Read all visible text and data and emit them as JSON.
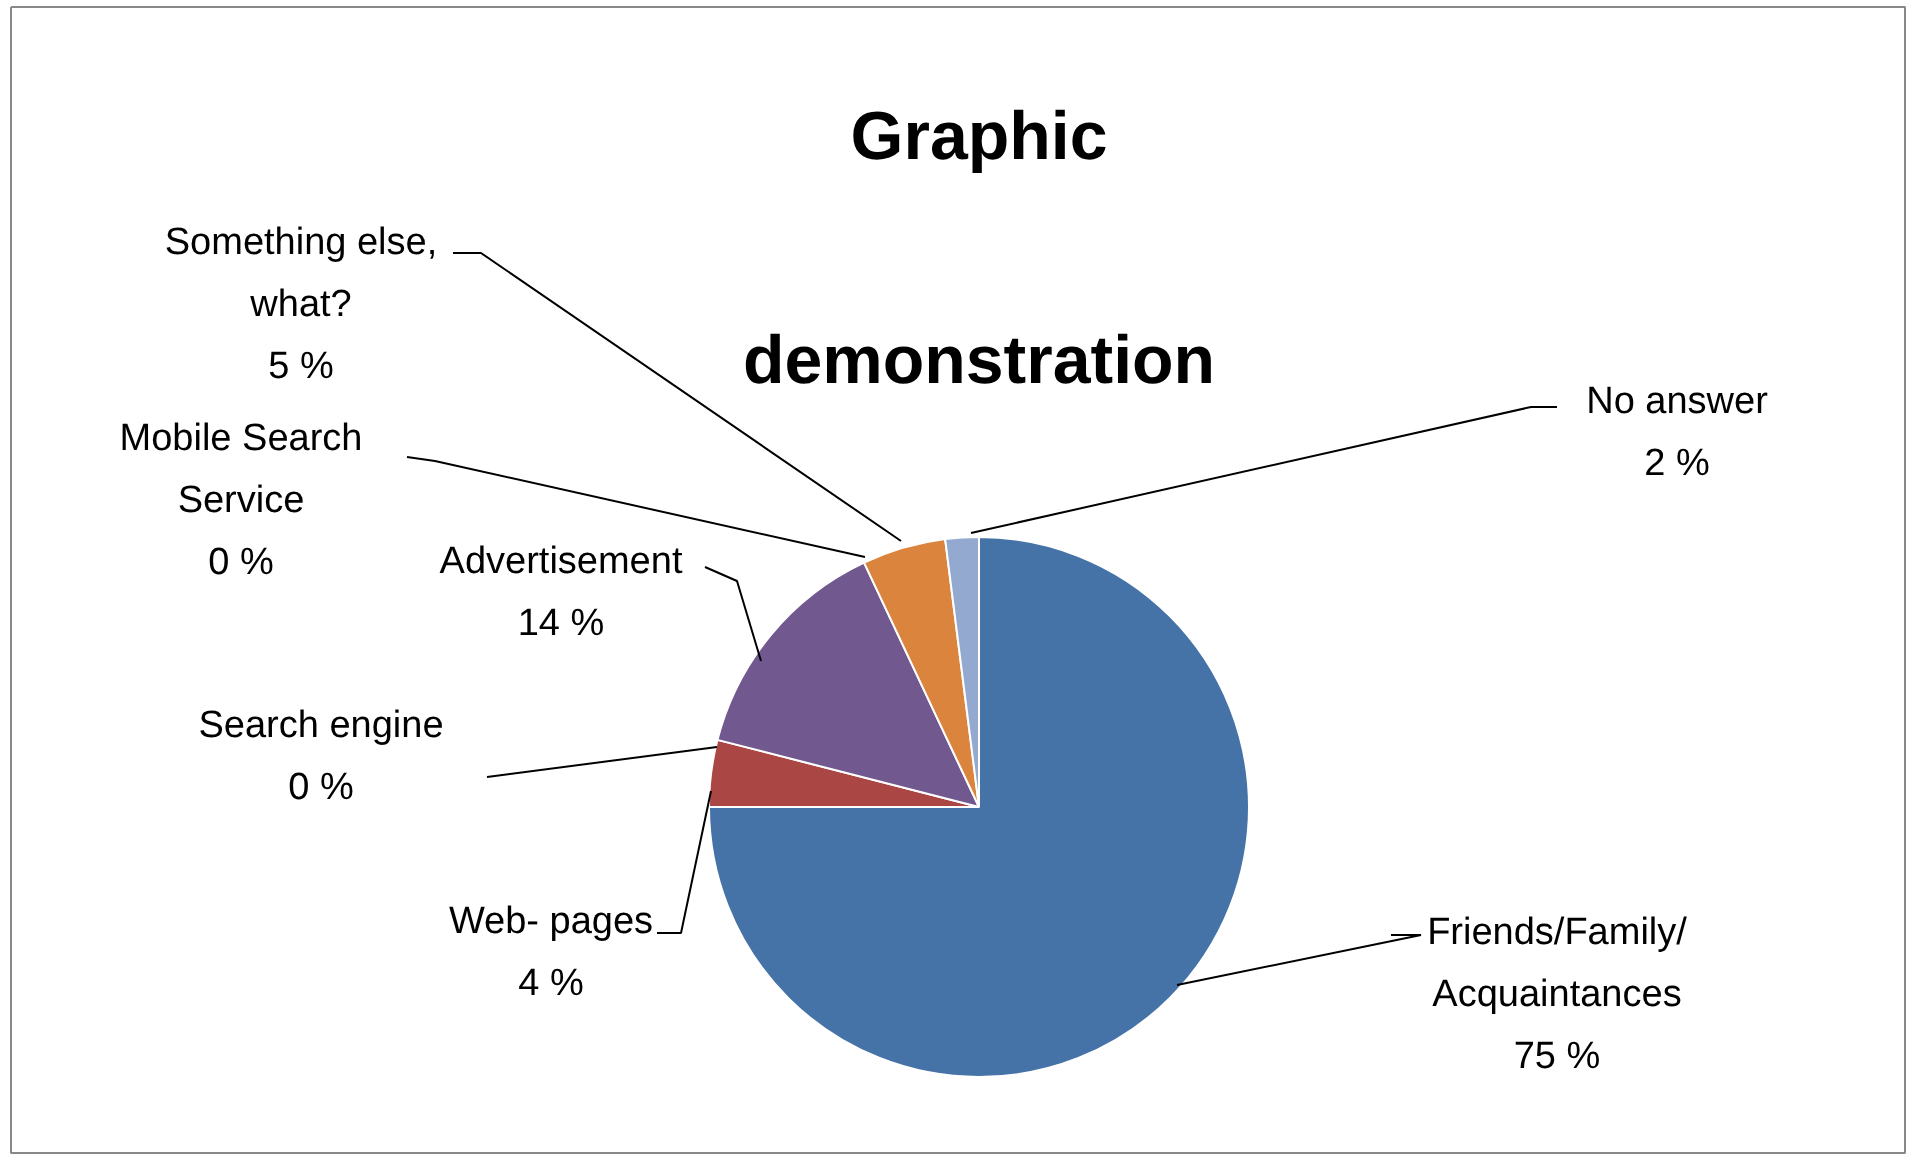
{
  "chart_data": {
    "type": "pie",
    "title": "Graphic demonstration",
    "categories": [
      "Friends/Family/\nAcquaintances",
      "Web- pages",
      "Search engine",
      "Advertisement",
      "Mobile Search\nService",
      "Something else,\nwhat?",
      "No answer"
    ],
    "values": [
      75,
      4,
      0,
      14,
      0,
      5,
      2
    ],
    "colors": [
      "#4572a7",
      "#aa4643",
      "#89a54e",
      "#71588f",
      "#4198af",
      "#db843d",
      "#93a9cf"
    ],
    "value_labels": [
      "75 %",
      "4 %",
      "0 %",
      "14 %",
      "0 %",
      "5 %",
      "2 %"
    ]
  }
}
